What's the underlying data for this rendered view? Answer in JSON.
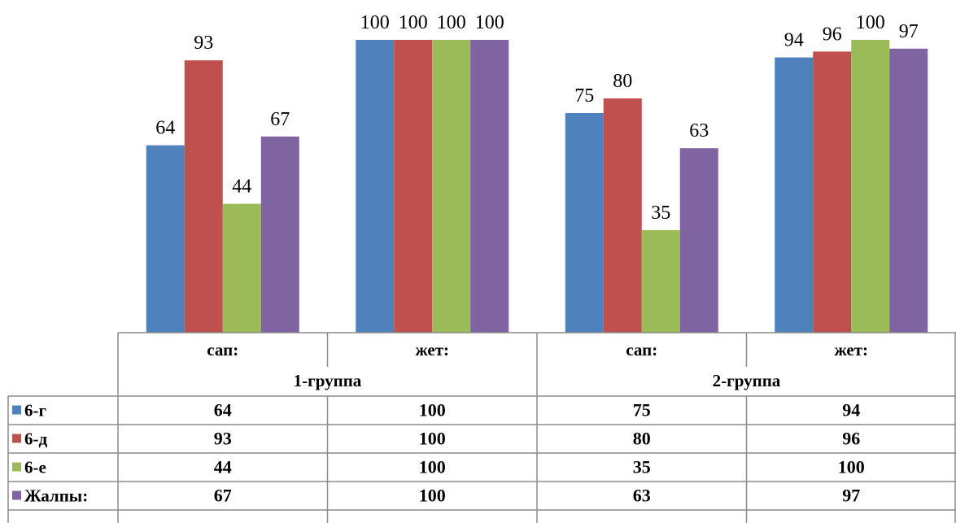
{
  "chart_data": {
    "type": "bar",
    "ylim": [
      0,
      100
    ],
    "categories": [
      "сап:",
      "жет:",
      "сап:",
      "жет:"
    ],
    "groups": [
      {
        "label": "1-группа",
        "span": [
          0,
          1
        ]
      },
      {
        "label": "2-группа",
        "span": [
          2,
          3
        ]
      }
    ],
    "series": [
      {
        "name": "6-г",
        "color": "#4F81BD",
        "values": [
          64,
          100,
          75,
          94
        ]
      },
      {
        "name": "6-д",
        "color": "#C0504D",
        "values": [
          93,
          100,
          80,
          96
        ]
      },
      {
        "name": "6-е",
        "color": "#9BBB59",
        "values": [
          44,
          100,
          35,
          100
        ]
      },
      {
        "name": "Жалпы:",
        "color": "#8064A2",
        "values": [
          67,
          100,
          63,
          97
        ]
      }
    ],
    "data_labels": true,
    "data_table": true,
    "grid": false,
    "legend": "in data table, left column"
  }
}
